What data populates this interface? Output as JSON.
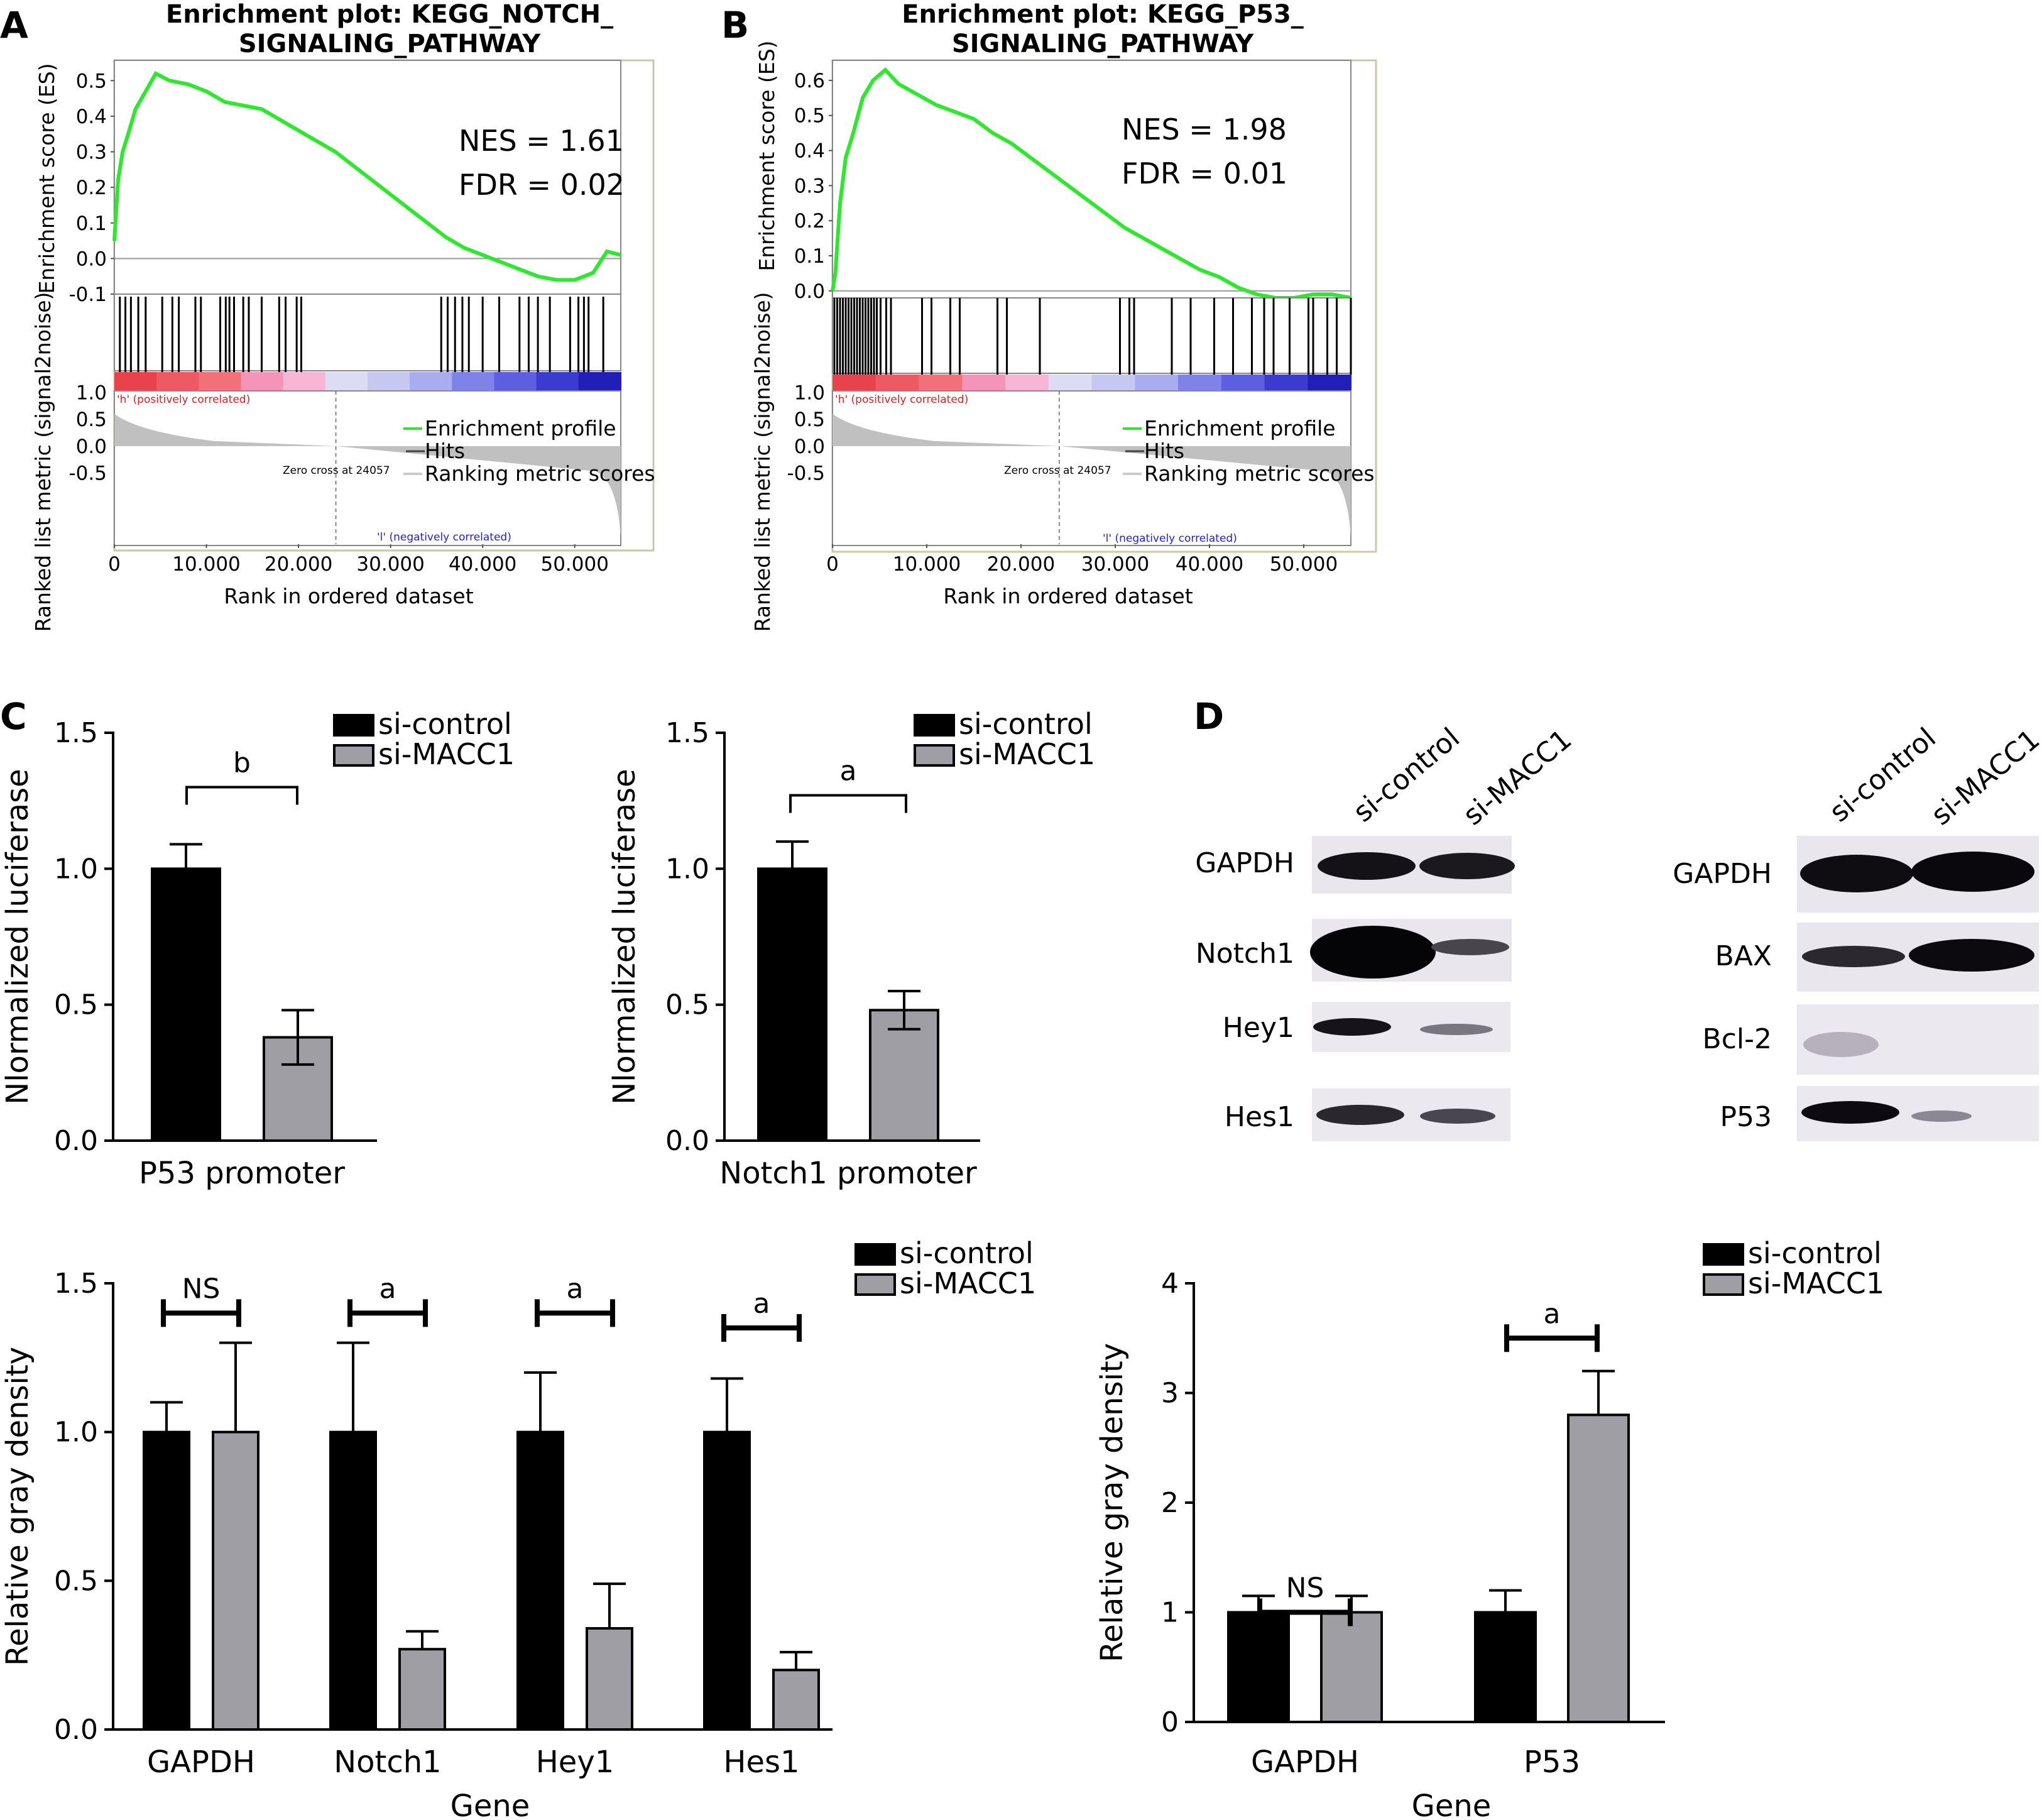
{
  "panels": {
    "A": "A",
    "B": "B",
    "C": "C",
    "D": "D"
  },
  "gsea": [
    {
      "title_line1": "Enrichment plot: KEGG_NOTCH_",
      "title_line2": "SIGNALING_PATHWAY",
      "nes": "NES = 1.61",
      "fdr": "FDR = 0.02",
      "es_ylabel": "Enrichment score (ES)",
      "rank_ylabel": "Ranked list metric (signal2noise)",
      "xlabel": "Rank in ordered dataset",
      "pos_label": "'h' (positively correlated)",
      "neg_label": "'l' (negatively correlated)",
      "zero_cross": "Zero cross at 24057",
      "legend": [
        "Enrichment profile",
        "Hits",
        "Ranking metric scores"
      ],
      "es_ticks": [
        "0.5",
        "0.4",
        "0.3",
        "0.2",
        "0.1",
        "0.0",
        "-0.1"
      ],
      "rank_ticks": [
        "1.0",
        "0.5",
        "0.0",
        "-0.5"
      ],
      "x_ticks": [
        "0",
        "10.000",
        "20.000",
        "30.000",
        "40.000",
        "50.000"
      ]
    },
    {
      "title_line1": "Enrichment plot: KEGG_P53_",
      "title_line2": "SIGNALING_PATHWAY",
      "nes": "NES = 1.98",
      "fdr": "FDR = 0.01",
      "es_ylabel": "Enrichment score (ES)",
      "rank_ylabel": "Ranked list metric (signal2noise)",
      "xlabel": "Rank in ordered dataset",
      "pos_label": "'h' (positively correlated)",
      "neg_label": "'l' (negatively correlated)",
      "zero_cross": "Zero cross at 24057",
      "legend": [
        "Enrichment profile",
        "Hits",
        "Ranking metric scores"
      ],
      "es_ticks": [
        "0.6",
        "0.5",
        "0.4",
        "0.3",
        "0.2",
        "0.1",
        "0.0"
      ],
      "rank_ticks": [
        "1.0",
        "0.5",
        "0.0",
        "-0.5"
      ],
      "x_ticks": [
        "0",
        "10.000",
        "20.000",
        "30.000",
        "40.000",
        "50.000"
      ]
    }
  ],
  "legend_labels": [
    "si-control",
    "si-MACC1"
  ],
  "blots": {
    "left": {
      "lanes": [
        "si-control",
        "si-MACC1"
      ],
      "rows": [
        "GAPDH",
        "Notch1",
        "Hey1",
        "Hes1"
      ]
    },
    "right": {
      "lanes": [
        "si-control",
        "si-MACC1"
      ],
      "rows": [
        "GAPDH",
        "BAX",
        "Bcl-2",
        "P53"
      ]
    }
  },
  "colors": {
    "si_control": "#000000",
    "si_macc1": "#9e9ea4",
    "es_curve": "#2ee82e"
  },
  "chart_data": [
    {
      "type": "line",
      "title": "Enrichment plot: KEGG_NOTCH_ SIGNALING_PATHWAY",
      "xlabel": "Rank in ordered dataset",
      "ylabel": "Enrichment score (ES)",
      "xlim": [
        0,
        55000
      ],
      "ylim": [
        -0.1,
        0.55
      ],
      "x": [
        0,
        400,
        900,
        1500,
        2300,
        3400,
        4500,
        6000,
        8000,
        10000,
        12000,
        14000,
        16000,
        18000,
        20000,
        22000,
        24000,
        26000,
        28000,
        30000,
        32000,
        34000,
        36000,
        38000,
        40000,
        42000,
        44000,
        46000,
        48000,
        50000,
        52000,
        53500,
        55000
      ],
      "series": [
        {
          "values": [
            0.05,
            0.22,
            0.3,
            0.35,
            0.42,
            0.47,
            0.52,
            0.5,
            0.49,
            0.47,
            0.44,
            0.43,
            0.42,
            0.39,
            0.36,
            0.33,
            0.3,
            0.26,
            0.22,
            0.18,
            0.14,
            0.1,
            0.06,
            0.03,
            0.01,
            -0.01,
            -0.03,
            -0.05,
            -0.06,
            -0.06,
            -0.04,
            0.02,
            0.01
          ]
        }
      ],
      "annotations": [
        "NES = 1.61",
        "FDR = 0.02"
      ]
    },
    {
      "type": "line",
      "title": "Enrichment plot: KEGG_P53_ SIGNALING_PATHWAY",
      "xlabel": "Rank in ordered dataset",
      "ylabel": "Enrichment score (ES)",
      "xlim": [
        0,
        55000
      ],
      "ylim": [
        -0.02,
        0.65
      ],
      "x": [
        0,
        300,
        800,
        1400,
        2200,
        3200,
        4300,
        5600,
        7000,
        9000,
        11000,
        13000,
        15000,
        17000,
        19000,
        21000,
        23000,
        25000,
        27000,
        29000,
        31000,
        33000,
        35000,
        37000,
        39000,
        41000,
        43000,
        45000,
        47000,
        49000,
        51000,
        53000,
        55000
      ],
      "series": [
        {
          "values": [
            0.0,
            0.05,
            0.25,
            0.38,
            0.45,
            0.55,
            0.6,
            0.63,
            0.59,
            0.56,
            0.53,
            0.51,
            0.49,
            0.45,
            0.42,
            0.38,
            0.34,
            0.3,
            0.26,
            0.22,
            0.18,
            0.15,
            0.12,
            0.09,
            0.06,
            0.04,
            0.01,
            -0.01,
            -0.02,
            -0.02,
            -0.01,
            -0.01,
            -0.02
          ]
        }
      ],
      "annotations": [
        "NES = 1.98",
        "FDR = 0.01"
      ]
    },
    {
      "type": "bar",
      "categories": [
        "P53 promoter"
      ],
      "series": [
        {
          "name": "si-control",
          "values": [
            1.0
          ],
          "errors": [
            0.09
          ]
        },
        {
          "name": "si-MACC1",
          "values": [
            0.38
          ],
          "errors": [
            0.1
          ]
        }
      ],
      "ylabel": "Nlormalized luciferase",
      "ylim": [
        0,
        1.5
      ],
      "yticks": [
        "0.0",
        "0.5",
        "1.0",
        "1.5"
      ],
      "significance": [
        "b"
      ]
    },
    {
      "type": "bar",
      "categories": [
        "Notch1 promoter"
      ],
      "series": [
        {
          "name": "si-control",
          "values": [
            1.0
          ],
          "errors": [
            0.1
          ]
        },
        {
          "name": "si-MACC1",
          "values": [
            0.48
          ],
          "errors": [
            0.07
          ]
        }
      ],
      "ylabel": "Nlormalized luciferase",
      "ylim": [
        0,
        1.5
      ],
      "yticks": [
        "0.0",
        "0.5",
        "1.0",
        "1.5"
      ],
      "significance": [
        "a"
      ]
    },
    {
      "type": "bar",
      "categories": [
        "GAPDH",
        "Notch1",
        "Hey1",
        "Hes1"
      ],
      "series": [
        {
          "name": "si-control",
          "values": [
            1.0,
            1.0,
            1.0,
            1.0
          ],
          "errors": [
            0.1,
            0.3,
            0.2,
            0.18
          ]
        },
        {
          "name": "si-MACC1",
          "values": [
            1.0,
            0.27,
            0.34,
            0.2
          ],
          "errors": [
            0.3,
            0.06,
            0.15,
            0.06
          ]
        }
      ],
      "xlabel": "Gene",
      "ylabel": "Relative gray density",
      "ylim": [
        0,
        1.5
      ],
      "yticks": [
        "0.0",
        "0.5",
        "1.0",
        "1.5"
      ],
      "significance": [
        "NS",
        "a",
        "a",
        "a"
      ]
    },
    {
      "type": "bar",
      "categories": [
        "GAPDH",
        "P53"
      ],
      "series": [
        {
          "name": "si-control",
          "values": [
            1.0,
            1.0
          ],
          "errors": [
            0.15,
            0.2
          ]
        },
        {
          "name": "si-MACC1",
          "values": [
            1.0,
            2.8
          ],
          "errors": [
            0.15,
            0.4
          ]
        }
      ],
      "xlabel": "Gene",
      "ylabel": "Relative gray density",
      "ylim": [
        0,
        4
      ],
      "yticks": [
        "0",
        "1",
        "2",
        "3",
        "4"
      ],
      "significance": [
        "NS",
        "a"
      ]
    }
  ]
}
